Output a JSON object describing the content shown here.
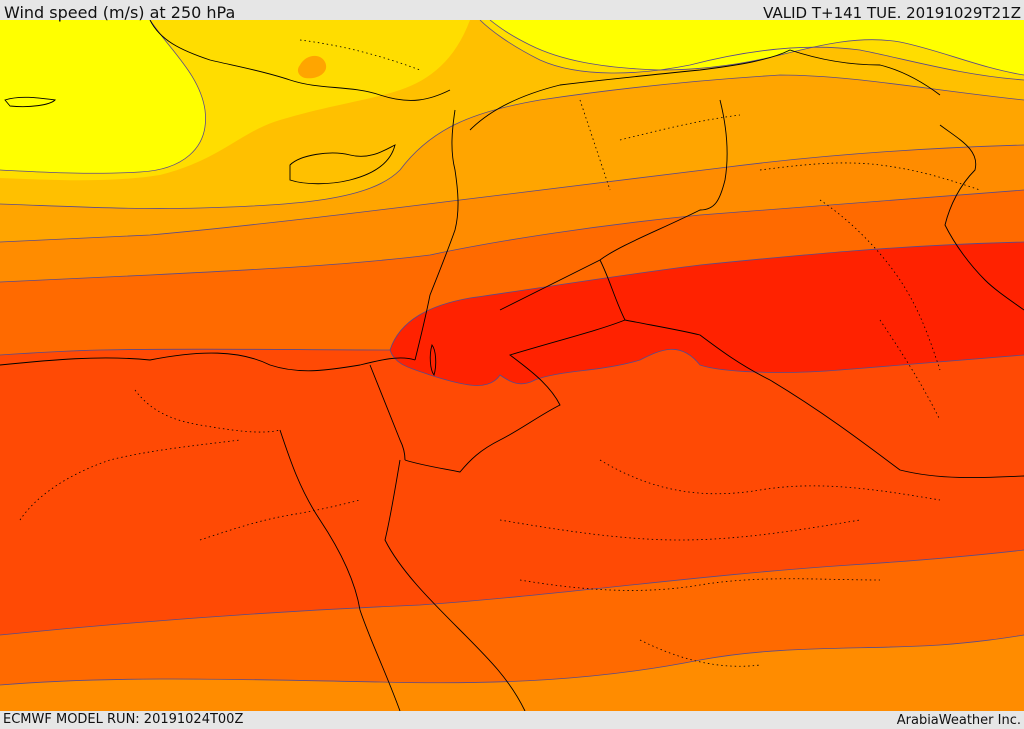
{
  "header": {
    "title": "Wind speed (m/s) at 250 hPa",
    "valid": "VALID T+141 TUE. 20191029T21Z"
  },
  "footer": {
    "run": "ECMWF MODEL RUN: 20191024T00Z",
    "credit": "ArabiaWeather Inc."
  },
  "map": {
    "field": "wind-speed-250hPa",
    "colors": {
      "band_1": "#ffff00",
      "band_2": "#ffdd00",
      "band_3": "#ffc000",
      "band_4": "#ffa500",
      "band_5": "#ff8c00",
      "band_6": "#ff6a00",
      "band_7": "#ff4a05",
      "band_8": "#ff2200",
      "contour_line": "#5a4a8a",
      "border_line": "#000000"
    }
  }
}
